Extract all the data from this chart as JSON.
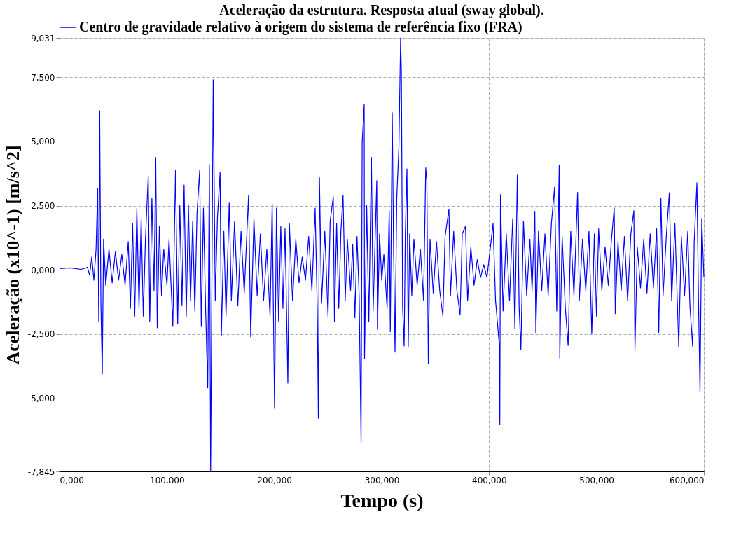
{
  "chart_data": {
    "type": "line",
    "title": "Aceleração da estrutura. Resposta atual (sway global).",
    "xlabel": "Tempo (s)",
    "ylabel": "Aceleração (x10^-1) [m/s^2]",
    "xlim": [
      0,
      600
    ],
    "ylim": [
      -7.845,
      9.031
    ],
    "xticks": [
      {
        "value": 0,
        "label": "0,000"
      },
      {
        "value": 100,
        "label": "100,000"
      },
      {
        "value": 200,
        "label": "200,000"
      },
      {
        "value": 300,
        "label": "300,000"
      },
      {
        "value": 400,
        "label": "400,000"
      },
      {
        "value": 500,
        "label": "500,000"
      },
      {
        "value": 600,
        "label": "600,000"
      }
    ],
    "yticks": [
      {
        "value": -7.845,
        "label": "-7,845"
      },
      {
        "value": -5,
        "label": "-5,000"
      },
      {
        "value": -2.5,
        "label": "-2,500"
      },
      {
        "value": 0,
        "label": "0,000"
      },
      {
        "value": 2.5,
        "label": "2,500"
      },
      {
        "value": 5,
        "label": "5,000"
      },
      {
        "value": 7.5,
        "label": "7,500"
      },
      {
        "value": 9.031,
        "label": "9,031"
      }
    ],
    "grid": true,
    "legend": "top",
    "line_style": "solid",
    "x": [
      0,
      10,
      20,
      26,
      28,
      30,
      32,
      34,
      35.5,
      36.5,
      37.4,
      38.5,
      39.8,
      41,
      43,
      46,
      49,
      52,
      55,
      58,
      61,
      64,
      66,
      68,
      70,
      72,
      74,
      76,
      78,
      80,
      82.6,
      84,
      86,
      88,
      89.6,
      91,
      93,
      95,
      97,
      100,
      102,
      105.5,
      108,
      110,
      112,
      114,
      116,
      118,
      120,
      122,
      124,
      126,
      128,
      130.5,
      132,
      134,
      136,
      138,
      139.5,
      140.7,
      143.1,
      145,
      147,
      149.5,
      150.7,
      153,
      155,
      158,
      160,
      163,
      166,
      169,
      172,
      176,
      178,
      181,
      184,
      187,
      190,
      193,
      196,
      198,
      200.2,
      202,
      204,
      206,
      208,
      210,
      212.6,
      214,
      217,
      220,
      223,
      226,
      229,
      232,
      235,
      238,
      240,
      241,
      242,
      244,
      247,
      250,
      252,
      254.9,
      256,
      258,
      260,
      262,
      264,
      266,
      268,
      271,
      273,
      275,
      277,
      279,
      280.8,
      281.8,
      283.7,
      284,
      286,
      288,
      290.4,
      292,
      295.4,
      296,
      298,
      300,
      302,
      305,
      307,
      308,
      309.8,
      311,
      312.4,
      314,
      316,
      317.6,
      318.3,
      319.5,
      320.9,
      322,
      323.5,
      324.7,
      326,
      328,
      330,
      333,
      336,
      339,
      341,
      342,
      343.4,
      345,
      348,
      351,
      354,
      357,
      359,
      362.6,
      364,
      367,
      370,
      373,
      375,
      378,
      380,
      383,
      386,
      389,
      392,
      395,
      398,
      401,
      403.7,
      406,
      409.5,
      410,
      410.6,
      413,
      416,
      419,
      422,
      424,
      426.3,
      428,
      429.6,
      432,
      435,
      438,
      440,
      442.6,
      443.5,
      446,
      449,
      452,
      455,
      458,
      461,
      463,
      465.3,
      465.8,
      468,
      471,
      473.6,
      476,
      479,
      482.4,
      484,
      487,
      490,
      493,
      495.6,
      498,
      500,
      502,
      505,
      508,
      511,
      514,
      516.5,
      517.5,
      520,
      523,
      526,
      529,
      532,
      534.8,
      535.8,
      538,
      541,
      544,
      547,
      550,
      553,
      556,
      558,
      560,
      562,
      565,
      567.8,
      570,
      573,
      576.6,
      579,
      582,
      585,
      587,
      589.6,
      591,
      593.5,
      595,
      596.4,
      598,
      600
    ],
    "series": [
      {
        "name": "Centro de gravidade relativo à origem do sistema de referência fixo (FRA)",
        "color": "#0000ff",
        "values": [
          0.05,
          0.08,
          0.02,
          0.1,
          -0.2,
          0.5,
          -0.4,
          0.8,
          3.17,
          -2.0,
          6.2,
          -1.3,
          -4.05,
          1.2,
          -0.6,
          0.8,
          -0.5,
          0.7,
          -0.4,
          0.6,
          -0.6,
          1.1,
          -1.5,
          1.8,
          -1.8,
          2.4,
          -1.5,
          2.0,
          -1.8,
          1.2,
          3.65,
          -2.0,
          2.8,
          -0.8,
          4.37,
          -2.25,
          1.7,
          -1.0,
          0.8,
          -0.6,
          1.2,
          -2.2,
          3.88,
          -2.1,
          2.5,
          -1.4,
          3.3,
          -1.8,
          2.5,
          -1.2,
          1.9,
          -1.6,
          2.2,
          3.88,
          -2.2,
          2.4,
          -1.5,
          -4.59,
          4.1,
          -7.845,
          7.4,
          -1.2,
          2.0,
          3.8,
          -2.55,
          1.5,
          -1.8,
          2.6,
          -1.2,
          1.9,
          -1.4,
          1.5,
          -0.9,
          2.91,
          -2.6,
          2.0,
          -1.0,
          1.4,
          -1.2,
          0.8,
          -1.8,
          2.57,
          -5.39,
          2.4,
          -2.0,
          1.7,
          -1.5,
          1.6,
          -4.41,
          1.8,
          -1.2,
          1.2,
          -0.5,
          0.5,
          -0.4,
          1.3,
          -0.8,
          2.4,
          -1.5,
          -5.77,
          3.59,
          -1.3,
          1.5,
          -1.8,
          1.9,
          2.85,
          -2.0,
          1.8,
          -1.5,
          1.5,
          2.9,
          -1.2,
          1.2,
          -0.8,
          1.0,
          -1.86,
          1.3,
          -1.0,
          -6.73,
          4.95,
          6.45,
          -3.45,
          2.5,
          -2.0,
          4.38,
          -1.6,
          3.47,
          -2.31,
          1.4,
          -0.4,
          0.6,
          -1.5,
          2.3,
          -2.4,
          6.12,
          1.0,
          -3.2,
          2.8,
          4.8,
          9.031,
          7.73,
          -1.5,
          -2.96,
          1.5,
          3.93,
          -3.0,
          1.4,
          -1.0,
          1.2,
          -0.6,
          0.8,
          -1.2,
          3.97,
          3.5,
          -3.66,
          1.2,
          -0.9,
          1.1,
          -0.8,
          -1.8,
          1.3,
          2.36,
          -1.0,
          1.5,
          -0.8,
          -1.75,
          1.4,
          1.7,
          -1.2,
          0.9,
          -0.6,
          0.4,
          -0.3,
          0.2,
          -0.3,
          0.8,
          1.81,
          -1.2,
          -2.9,
          -6.01,
          2.93,
          -1.6,
          1.4,
          -1.2,
          2.0,
          -2.3,
          3.69,
          -1.5,
          -3.11,
          1.9,
          -1.0,
          1.2,
          -0.8,
          2.28,
          -2.43,
          1.5,
          -0.8,
          1.4,
          -1.0,
          1.8,
          3.22,
          -1.6,
          4.09,
          -3.43,
          1.3,
          -1.5,
          -2.94,
          1.5,
          -1.0,
          3.02,
          -1.2,
          1.2,
          -0.8,
          1.5,
          -2.49,
          1.4,
          -1.8,
          1.6,
          -0.8,
          0.9,
          -0.6,
          1.2,
          2.41,
          -1.7,
          1.1,
          -0.8,
          1.3,
          -1.2,
          1.4,
          2.3,
          -3.13,
          0.9,
          -0.7,
          1.2,
          -0.9,
          1.4,
          -0.7,
          1.6,
          -2.43,
          2.79,
          -1.0,
          1.3,
          3.0,
          -1.2,
          1.8,
          -3.0,
          1.3,
          -1.0,
          1.5,
          -1.4,
          -3.0,
          1.1,
          3.39,
          -1.2,
          -4.77,
          2.0,
          -0.3
        ]
      }
    ]
  }
}
